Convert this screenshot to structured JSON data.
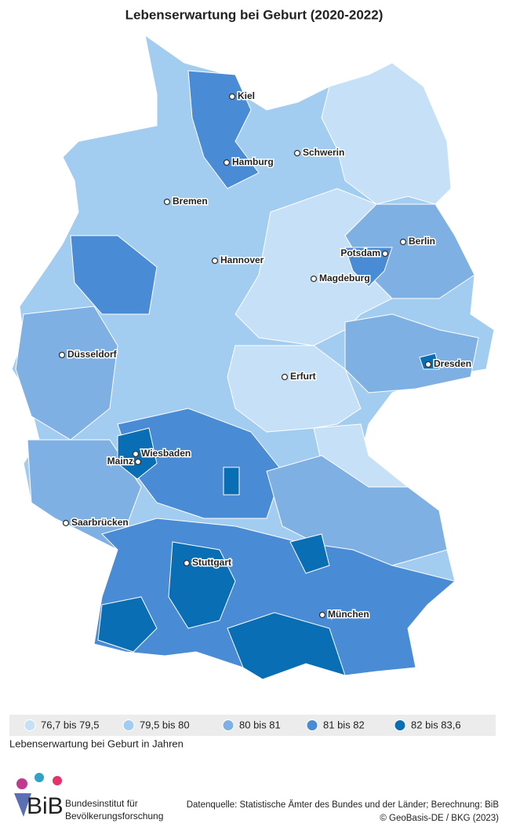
{
  "title": "Lebenserwartung bei Geburt (2020-2022)",
  "cities": [
    "Kiel",
    "Hamburg",
    "Schwerin",
    "Bremen",
    "Berlin",
    "Potsdam",
    "Hannover",
    "Magdeburg",
    "Düsseldorf",
    "Dresden",
    "Erfurt",
    "Wiesbaden",
    "Mainz",
    "Saarbrücken",
    "Stuttgart",
    "München"
  ],
  "legend": {
    "items": [
      {
        "label": "76,7 bis 79,5",
        "color": "#c6e0f7"
      },
      {
        "label": "79,5 bis 80",
        "color": "#a3cdf0"
      },
      {
        "label": "80 bis 81",
        "color": "#7fb0e3"
      },
      {
        "label": "81 bis 82",
        "color": "#4a8bd6"
      },
      {
        "label": "82 bis 83,6",
        "color": "#0a6eb4"
      }
    ],
    "caption": "Lebenserwartung bei Geburt in Jahren"
  },
  "logo": {
    "abbr": "BiB",
    "line1": "Bundesinstitut für",
    "line2": "Bevölkerungsforschung"
  },
  "source": {
    "line1": "Datenquelle: Statistische Ämter des Bundes und der Länder; Berechnung: BiB",
    "line2": "© GeoBasis-DE / BKG (2023)"
  }
}
